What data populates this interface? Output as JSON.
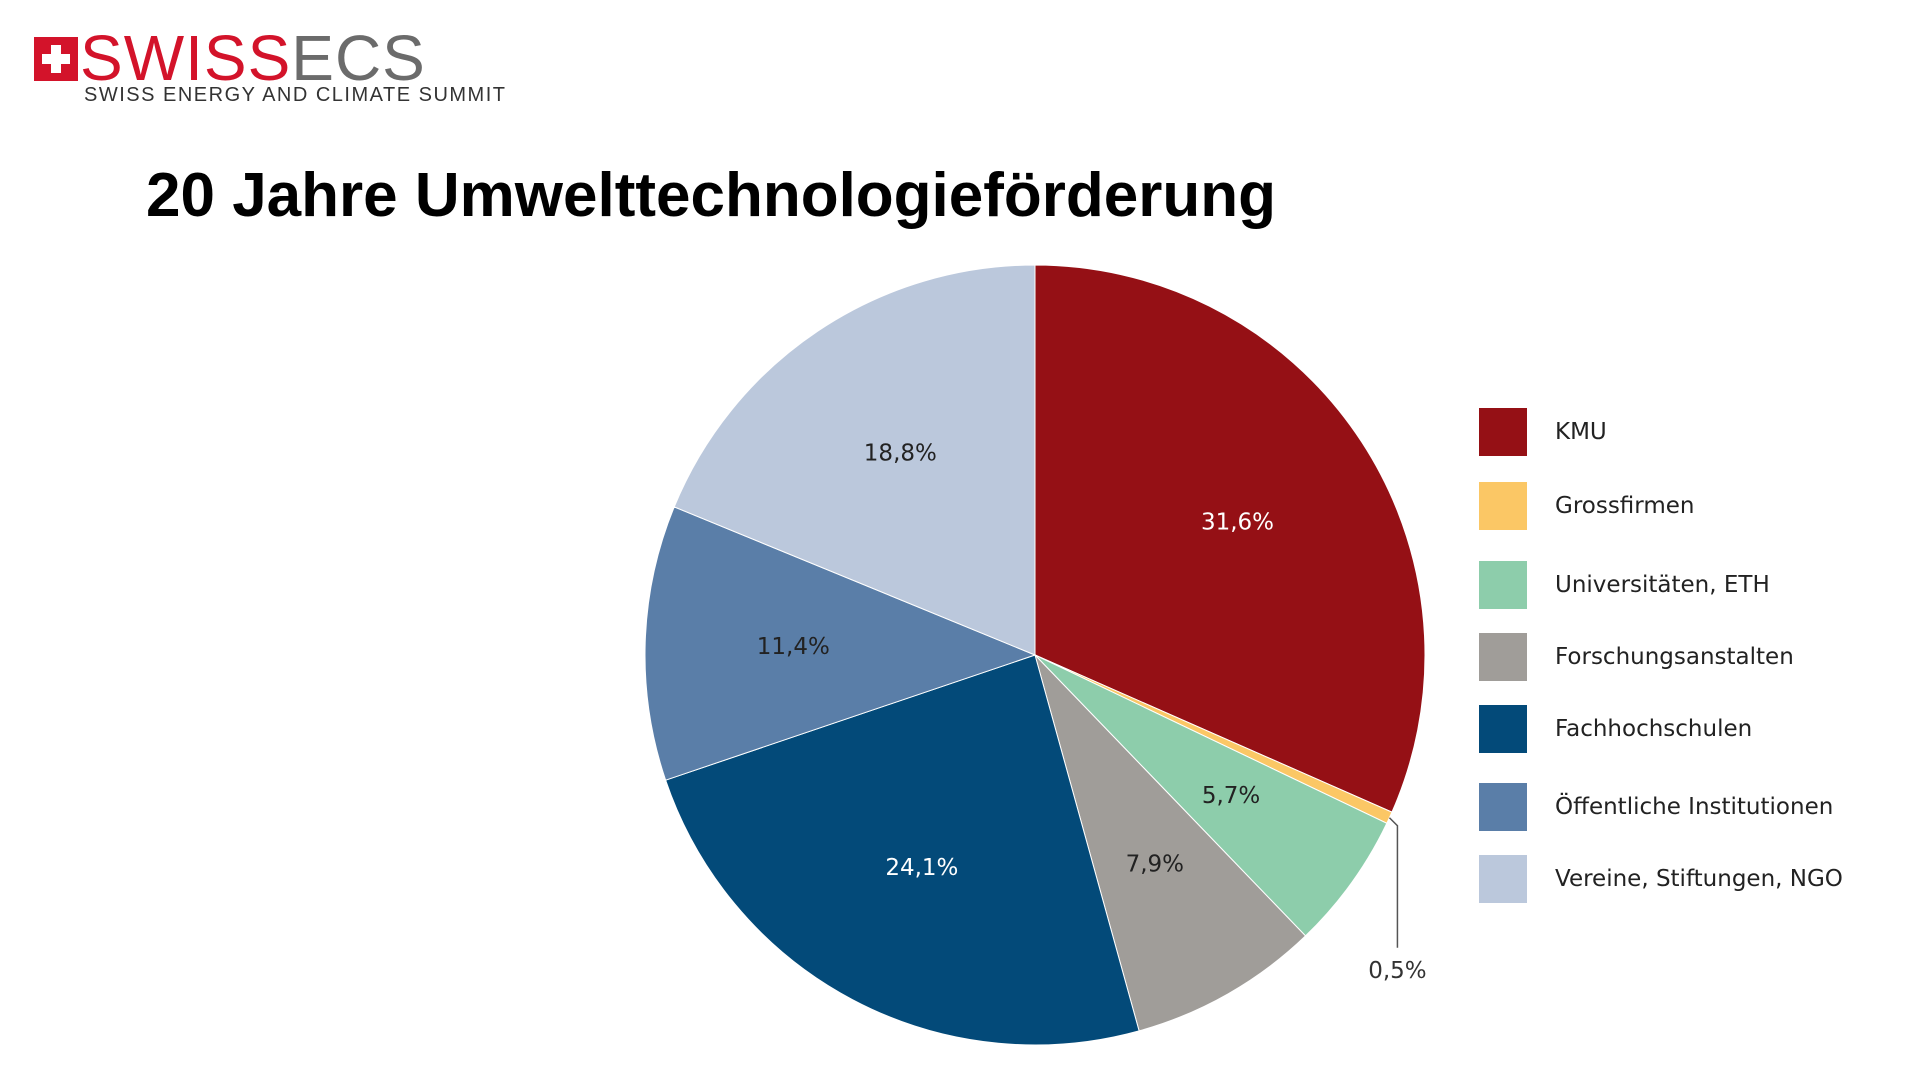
{
  "logo": {
    "word_part1": "SWISS",
    "word_part2": "ECS",
    "subtitle": "SWISS ENERGY AND CLIMATE SUMMIT",
    "colors": {
      "red": "#d3132a",
      "gray": "#6b6b6b"
    }
  },
  "chart_data": {
    "type": "pie",
    "title": "20 Jahre Umwelttechnologieförderung",
    "legend_position": "right",
    "start_angle_deg": 0,
    "direction": "clockwise",
    "slices": [
      {
        "label": "KMU",
        "value": 31.6,
        "display": "31,6%",
        "color": "#951015",
        "label_color": "#ffffff"
      },
      {
        "label": "Grossfirmen",
        "value": 0.5,
        "display": "0,5%",
        "color": "#fbc765",
        "label_color": "#333333",
        "callout": true
      },
      {
        "label": "Universitäten, ETH",
        "value": 5.7,
        "display": "5,7%",
        "color": "#8dcdab",
        "label_color": "#222222"
      },
      {
        "label": "Forschungsanstalten",
        "value": 7.9,
        "display": "7,9%",
        "color": "#a09d99",
        "label_color": "#222222"
      },
      {
        "label": "Fachhochschulen",
        "value": 24.1,
        "display": "24,1%",
        "color": "#034a79",
        "label_color": "#ffffff"
      },
      {
        "label": "Öffentliche Institutionen",
        "value": 11.4,
        "display": "11,4%",
        "color": "#5a7ea8",
        "label_color": "#222222"
      },
      {
        "label": "Vereine, Stiftungen, NGO",
        "value": 18.8,
        "display": "18,8%",
        "color": "#bbc8dc",
        "label_color": "#222222"
      }
    ]
  }
}
